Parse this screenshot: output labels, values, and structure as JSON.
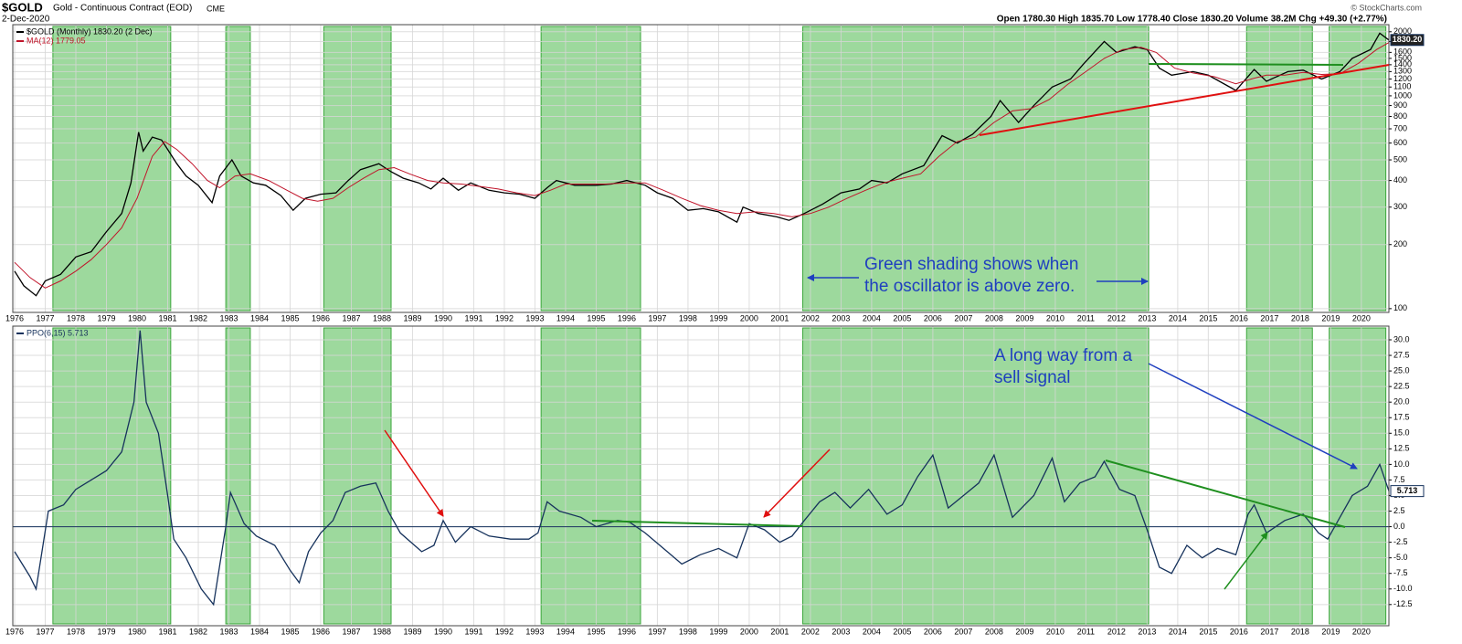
{
  "header": {
    "symbol": "$GOLD",
    "name": "Gold - Continuous Contract (EOD)",
    "exchange": "CME",
    "date": "2-Dec-2020",
    "quote": "Open 1780.30  High 1835.70  Low 1778.40  Close 1830.20  Volume 38.2M  Chg +49.30 (+2.77%)",
    "copyright": "© StockCharts.com"
  },
  "chart_data": [
    {
      "type": "line",
      "log": true,
      "grid": true,
      "xlim": [
        1975.94,
        2020.9
      ],
      "xticks": [
        1976,
        1977,
        1978,
        1979,
        1980,
        1981,
        1982,
        1983,
        1984,
        1985,
        1986,
        1987,
        1988,
        1989,
        1990,
        1991,
        1992,
        1993,
        1994,
        1995,
        1996,
        1997,
        1998,
        1999,
        2000,
        2001,
        2002,
        2003,
        2004,
        2005,
        2006,
        2007,
        2008,
        2009,
        2010,
        2011,
        2012,
        2013,
        2014,
        2015,
        2016,
        2017,
        2018,
        2019,
        2020
      ],
      "ylim": [
        96,
        2160
      ],
      "yticks": [
        100,
        200,
        300,
        400,
        500,
        600,
        700,
        800,
        900,
        1000,
        1100,
        1200,
        1300,
        1400,
        1500,
        1600,
        1800,
        2000
      ],
      "shading": [
        [
          1977.25,
          1981.1
        ],
        [
          1982.9,
          1983.7
        ],
        [
          1986.1,
          1988.3
        ],
        [
          1993.2,
          1996.45
        ],
        [
          2001.75,
          2013.05
        ],
        [
          2016.25,
          2018.4
        ],
        [
          2018.95,
          2020.8
        ]
      ],
      "shading_color": "#5cbf5c",
      "last_label": "1830.20",
      "annotations": [
        "Green shading shows when",
        "the oscillator is above zero."
      ],
      "series": [
        {
          "name": "$GOLD (Monthly) 1830.20 (2 Dec)",
          "color": "#000000",
          "x": [
            1976.0,
            1976.3,
            1976.7,
            1977.0,
            1977.5,
            1978.0,
            1978.5,
            1979.0,
            1979.5,
            1979.8,
            1980.05,
            1980.2,
            1980.5,
            1980.8,
            1981.0,
            1981.3,
            1981.6,
            1982.0,
            1982.45,
            1982.7,
            1983.1,
            1983.4,
            1983.8,
            1984.2,
            1984.7,
            1985.1,
            1985.5,
            1986.0,
            1986.5,
            1986.9,
            1987.3,
            1987.9,
            1988.3,
            1988.7,
            1989.2,
            1989.6,
            1990.0,
            1990.5,
            1990.9,
            1991.5,
            1992.0,
            1992.5,
            1993.0,
            1993.4,
            1993.7,
            1994.3,
            1995.0,
            1995.5,
            1996.0,
            1996.6,
            1997.0,
            1997.5,
            1998.0,
            1998.5,
            1999.0,
            1999.6,
            1999.8,
            2000.3,
            2000.9,
            2001.3,
            2001.8,
            2002.4,
            2003.0,
            2003.6,
            2004.0,
            2004.5,
            2005.0,
            2005.7,
            2006.3,
            2006.8,
            2007.3,
            2007.9,
            2008.2,
            2008.8,
            2009.3,
            2009.9,
            2010.5,
            2010.9,
            2011.6,
            2012.0,
            2012.6,
            2013.0,
            2013.4,
            2013.8,
            2014.5,
            2015.0,
            2015.9,
            2016.5,
            2016.9,
            2017.6,
            2018.1,
            2018.7,
            2019.3,
            2019.7,
            2020.3,
            2020.6,
            2020.9
          ],
          "values": [
            150,
            128,
            115,
            135,
            145,
            175,
            185,
            230,
            280,
            390,
            675,
            550,
            640,
            620,
            560,
            480,
            420,
            380,
            315,
            420,
            500,
            420,
            390,
            380,
            340,
            290,
            330,
            345,
            350,
            400,
            450,
            480,
            440,
            410,
            390,
            365,
            410,
            360,
            390,
            360,
            350,
            345,
            330,
            370,
            400,
            380,
            380,
            385,
            400,
            380,
            350,
            330,
            290,
            295,
            285,
            255,
            300,
            280,
            270,
            260,
            280,
            310,
            350,
            365,
            400,
            390,
            430,
            470,
            650,
            600,
            660,
            800,
            950,
            750,
            900,
            1100,
            1200,
            1400,
            1800,
            1600,
            1700,
            1650,
            1350,
            1250,
            1300,
            1250,
            1060,
            1330,
            1170,
            1300,
            1320,
            1200,
            1300,
            1500,
            1650,
            1970,
            1830
          ]
        },
        {
          "name": "MA(12) 1779.05",
          "color": "#c0142a",
          "x": [
            1976.0,
            1976.5,
            1977.0,
            1977.5,
            1978.0,
            1978.5,
            1979.0,
            1979.5,
            1980.0,
            1980.5,
            1980.9,
            1981.3,
            1981.8,
            1982.3,
            1982.7,
            1983.2,
            1983.7,
            1984.3,
            1984.9,
            1985.4,
            1985.9,
            1986.4,
            1986.9,
            1987.4,
            1987.9,
            1988.4,
            1988.9,
            1989.5,
            1990.0,
            1990.6,
            1991.2,
            1991.8,
            1992.4,
            1993.0,
            1993.5,
            1994.0,
            1994.6,
            1995.3,
            1996.0,
            1996.6,
            1997.2,
            1997.8,
            1998.4,
            1999.0,
            1999.6,
            2000.2,
            2000.8,
            2001.4,
            2002.0,
            2002.6,
            2003.2,
            2003.8,
            2004.4,
            2005.0,
            2005.6,
            2006.2,
            2006.8,
            2007.4,
            2008.0,
            2008.6,
            2009.2,
            2009.8,
            2010.4,
            2011.0,
            2011.6,
            2012.2,
            2012.8,
            2013.3,
            2013.9,
            2014.5,
            2015.2,
            2015.9,
            2016.4,
            2016.9,
            2017.5,
            2018.1,
            2018.7,
            2019.3,
            2019.9,
            2020.5,
            2020.9
          ],
          "values": [
            165,
            140,
            125,
            135,
            150,
            170,
            200,
            240,
            330,
            520,
            610,
            560,
            480,
            400,
            370,
            420,
            430,
            400,
            360,
            330,
            320,
            330,
            370,
            410,
            450,
            460,
            430,
            400,
            390,
            385,
            375,
            365,
            350,
            340,
            360,
            385,
            385,
            385,
            390,
            390,
            360,
            330,
            305,
            290,
            280,
            285,
            280,
            270,
            280,
            300,
            330,
            360,
            390,
            410,
            430,
            520,
            610,
            640,
            750,
            850,
            870,
            960,
            1130,
            1300,
            1500,
            1650,
            1690,
            1600,
            1350,
            1280,
            1230,
            1140,
            1200,
            1250,
            1250,
            1290,
            1260,
            1270,
            1420,
            1650,
            1779
          ]
        }
      ]
    },
    {
      "type": "line",
      "log": false,
      "grid": true,
      "ylim": [
        -15.9,
        32.2
      ],
      "yticks": [
        {
          "value": -12.5,
          "label": "-12.5"
        },
        {
          "value": -10,
          "label": "-10.0"
        },
        -7.5,
        {
          "value": -5,
          "label": "-5.0"
        },
        -2.5,
        {
          "value": 0,
          "label": "0.0"
        },
        2.5,
        {
          "value": 5,
          "label": "5.0"
        },
        7.5,
        {
          "value": 10,
          "label": "10.0"
        },
        12.5,
        {
          "value": 15,
          "label": "15.0"
        },
        17.5,
        {
          "value": 20,
          "label": "20.0"
        },
        22.5,
        {
          "value": 25,
          "label": "25.0"
        },
        27.5,
        {
          "value": 30,
          "label": "30.0"
        }
      ],
      "last_label": "5.713",
      "annotations": [
        "A long way from a",
        "sell signal"
      ],
      "series": [
        {
          "name": "PPO(6,15) 5.713",
          "color": "#16325c",
          "x": [
            1976.0,
            1976.5,
            1976.7,
            1977.1,
            1977.6,
            1978.0,
            1978.5,
            1979.0,
            1979.5,
            1979.9,
            1980.1,
            1980.3,
            1980.7,
            1981.0,
            1981.2,
            1981.6,
            1982.1,
            1982.5,
            1982.9,
            1983.05,
            1983.5,
            1983.9,
            1984.5,
            1985.0,
            1985.3,
            1985.6,
            1986.0,
            1986.4,
            1986.8,
            1987.3,
            1987.8,
            1988.2,
            1988.6,
            1989.3,
            1989.7,
            1990.0,
            1990.4,
            1990.9,
            1991.5,
            1992.2,
            1992.8,
            1993.1,
            1993.4,
            1993.8,
            1994.5,
            1995.0,
            1995.7,
            1996.1,
            1996.6,
            1997.2,
            1997.8,
            1998.4,
            1999.0,
            1999.6,
            2000.0,
            2000.5,
            2001.0,
            2001.4,
            2001.8,
            2002.3,
            2002.8,
            2003.3,
            2003.9,
            2004.5,
            2005.0,
            2005.5,
            2006.0,
            2006.5,
            2007.0,
            2007.5,
            2008.0,
            2008.6,
            2009.3,
            2009.9,
            2010.3,
            2010.8,
            2011.3,
            2011.6,
            2012.1,
            2012.6,
            2013.0,
            2013.4,
            2013.8,
            2014.3,
            2014.8,
            2015.3,
            2015.9,
            2016.3,
            2016.5,
            2016.9,
            2017.5,
            2018.1,
            2018.6,
            2018.9,
            2019.3,
            2019.7,
            2020.2,
            2020.6,
            2020.9
          ],
          "values": [
            -4,
            -8,
            -10,
            2.5,
            3.5,
            6,
            7.5,
            9,
            12,
            20,
            31.5,
            20,
            15,
            5,
            -2,
            -5,
            -10,
            -12.5,
            0,
            5.5,
            0.5,
            -1.5,
            -3,
            -7,
            -9,
            -4,
            -1,
            1,
            5.5,
            6.5,
            7,
            2.5,
            -1,
            -4,
            -3,
            1,
            -2.5,
            0,
            -1.5,
            -2,
            -2,
            -1,
            4,
            2.5,
            1.5,
            0,
            1,
            0.7,
            -1,
            -3.5,
            -6,
            -4.5,
            -3.5,
            -5,
            0.5,
            -0.5,
            -2.5,
            -1.5,
            1,
            4,
            5.5,
            3,
            6,
            2,
            3.5,
            8,
            11.5,
            3,
            5,
            7,
            11.5,
            1.5,
            5,
            11,
            4,
            7,
            8,
            10.5,
            6,
            5,
            -0.5,
            -6.5,
            -7.5,
            -3,
            -5,
            -3.5,
            -4.5,
            2,
            3.5,
            -1,
            1,
            2,
            -1,
            -2,
            1.5,
            5,
            6.5,
            10,
            5.713
          ]
        }
      ]
    }
  ]
}
